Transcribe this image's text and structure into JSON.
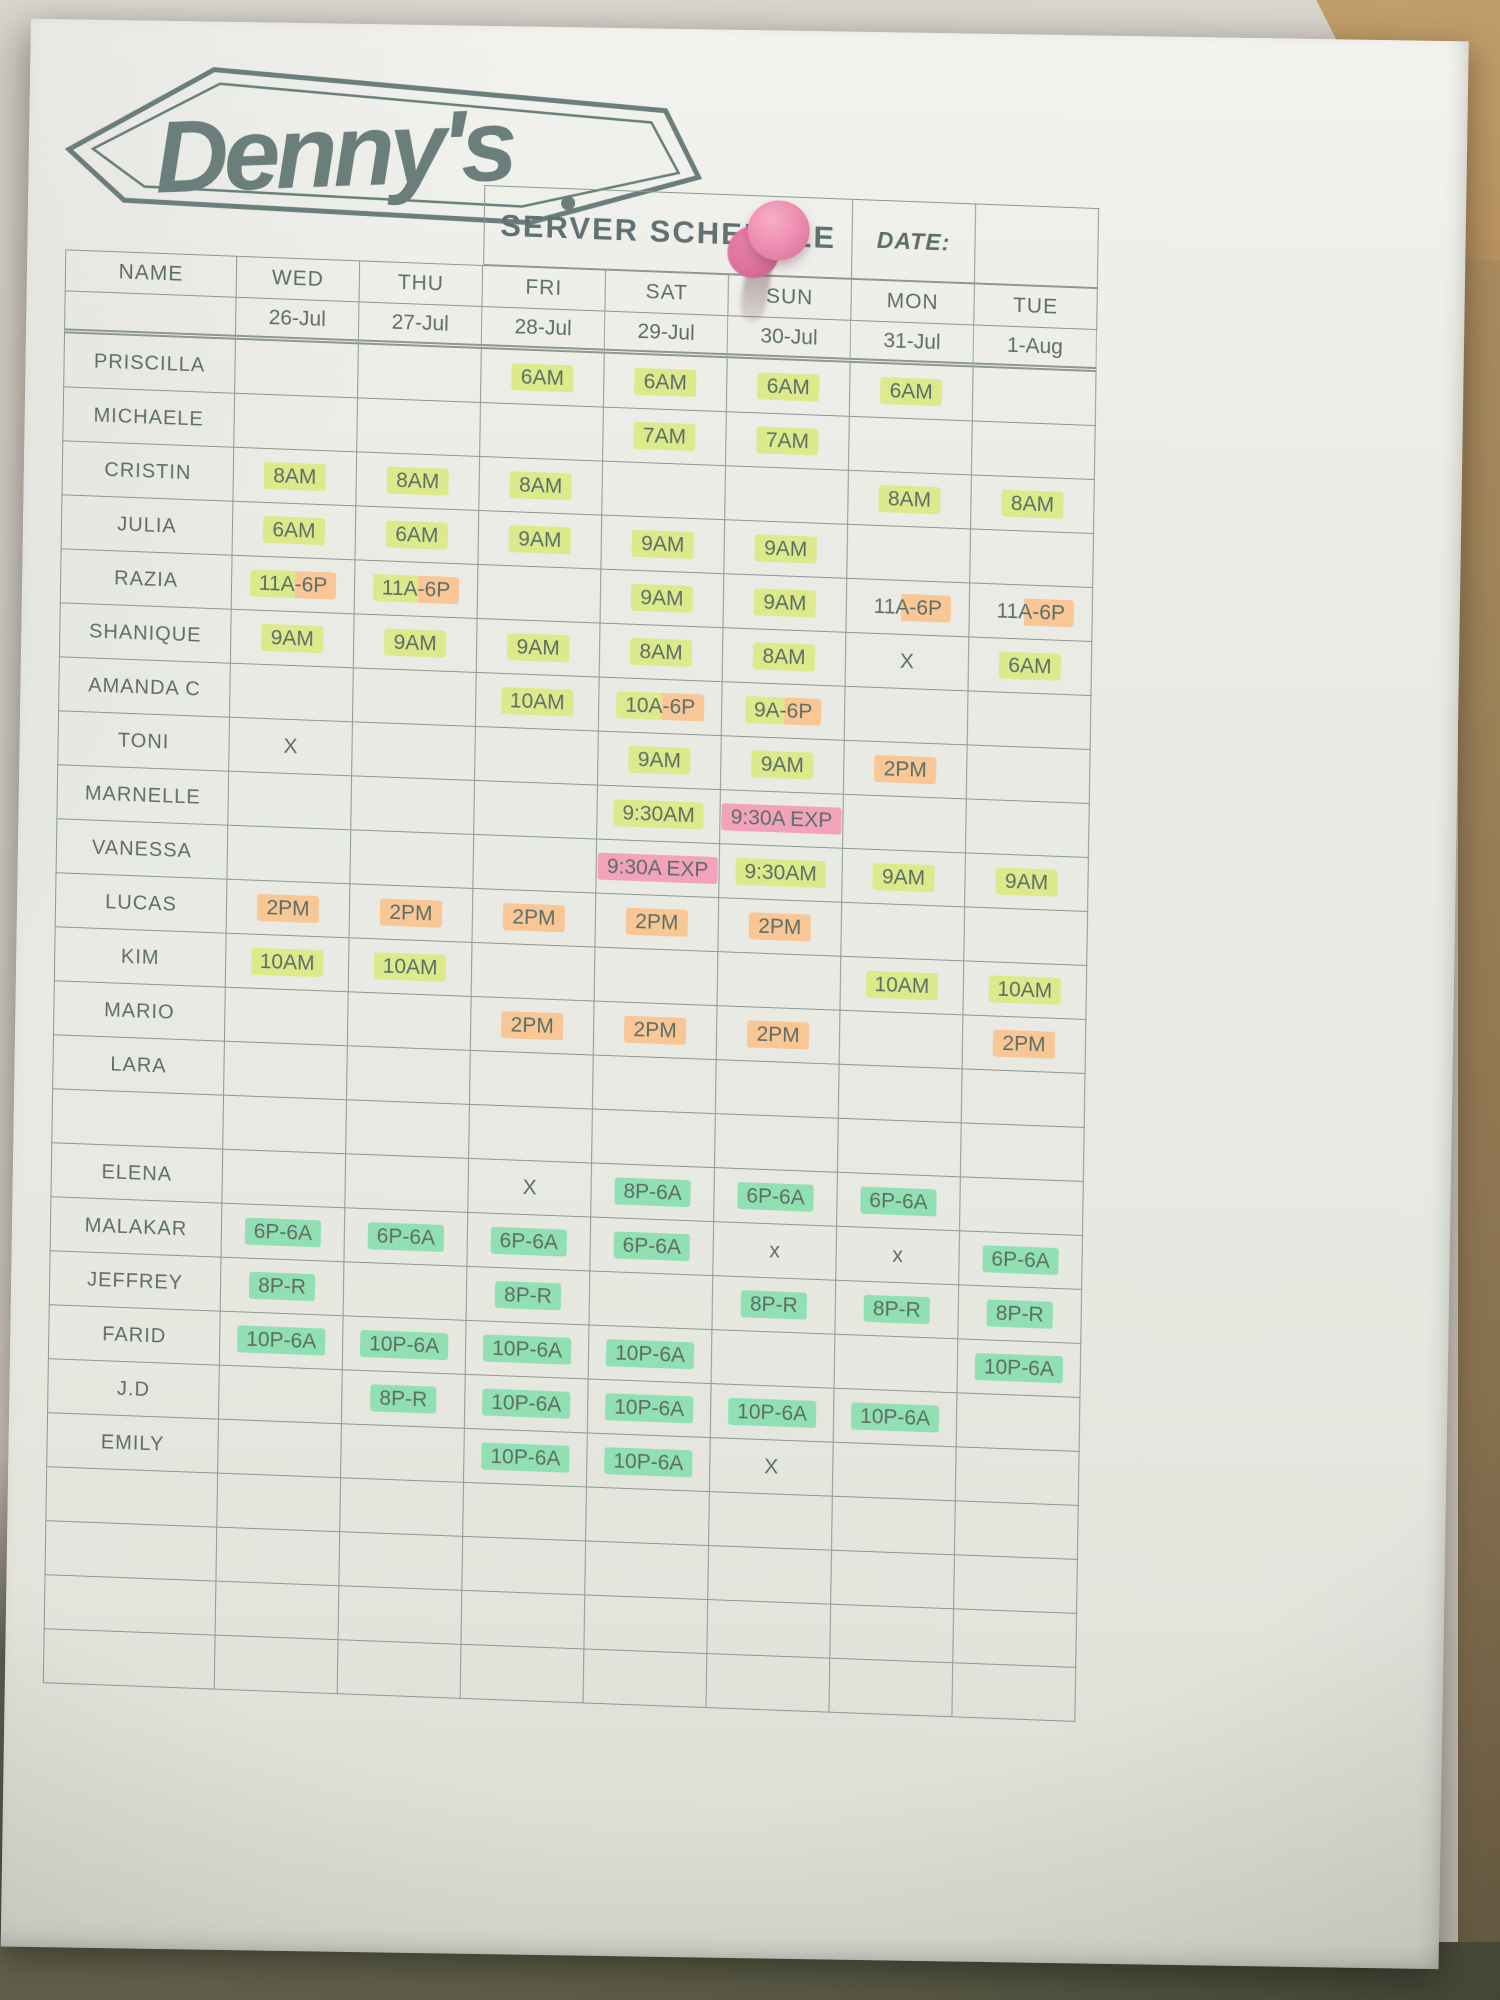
{
  "photo": {
    "subject": "Denny's paper server schedule pinned to a wall",
    "colors": {
      "ink": "#5d6e66",
      "grid_line": "#8d988f",
      "paper": "#eaebe5",
      "wall_tan": "#b08a58",
      "highlight_yellow": "#dcea8c",
      "highlight_orange": "#f8c795",
      "highlight_pink": "#f2a2bb",
      "highlight_green": "#90e0b3",
      "pushpin_pink": "#ee8fb2"
    }
  },
  "paper": {
    "logo_text": "Denny's",
    "title": "SERVER SCHEDULE",
    "date_label": "DATE:",
    "columns": [
      {
        "day": "NAME",
        "date": ""
      },
      {
        "day": "WED",
        "date": "26-Jul"
      },
      {
        "day": "THU",
        "date": "27-Jul"
      },
      {
        "day": "FRI",
        "date": "28-Jul"
      },
      {
        "day": "SAT",
        "date": "29-Jul"
      },
      {
        "day": "SUN",
        "date": "30-Jul"
      },
      {
        "day": "MON",
        "date": "31-Jul"
      },
      {
        "day": "TUE",
        "date": "1-Aug"
      }
    ],
    "highlight_legend": {
      "y": "yellow-green marker",
      "o": "orange marker",
      "p": "pink marker",
      "g": "green marker",
      "yo": "yellow then orange marker",
      "or": "orange marker on right half",
      "x": "no marker"
    },
    "rows": [
      {
        "name": "PRISCILLA",
        "cells": [
          null,
          null,
          {
            "t": "6AM",
            "h": "y"
          },
          {
            "t": "6AM",
            "h": "y"
          },
          {
            "t": "6AM",
            "h": "y"
          },
          {
            "t": "6AM",
            "h": "y"
          },
          null
        ]
      },
      {
        "name": "MICHAELE",
        "cells": [
          null,
          null,
          null,
          {
            "t": "7AM",
            "h": "y"
          },
          {
            "t": "7AM",
            "h": "y"
          },
          null,
          null
        ]
      },
      {
        "name": "CRISTIN",
        "cells": [
          {
            "t": "8AM",
            "h": "y"
          },
          {
            "t": "8AM",
            "h": "y"
          },
          {
            "t": "8AM",
            "h": "y"
          },
          null,
          null,
          {
            "t": "8AM",
            "h": "y"
          },
          {
            "t": "8AM",
            "h": "y"
          }
        ]
      },
      {
        "name": "JULIA",
        "cells": [
          {
            "t": "6AM",
            "h": "y"
          },
          {
            "t": "6AM",
            "h": "y"
          },
          {
            "t": "9AM",
            "h": "y"
          },
          {
            "t": "9AM",
            "h": "y"
          },
          {
            "t": "9AM",
            "h": "y"
          },
          null,
          null
        ]
      },
      {
        "name": "RAZIA",
        "cells": [
          {
            "t": "11A-6P",
            "h": "yo"
          },
          {
            "t": "11A-6P",
            "h": "yo"
          },
          null,
          {
            "t": "9AM",
            "h": "y"
          },
          {
            "t": "9AM",
            "h": "y"
          },
          {
            "t": "11A-6P",
            "h": "or"
          },
          {
            "t": "11A-6P",
            "h": "or"
          }
        ]
      },
      {
        "name": "SHANIQUE",
        "cells": [
          {
            "t": "9AM",
            "h": "y"
          },
          {
            "t": "9AM",
            "h": "y"
          },
          {
            "t": "9AM",
            "h": "y"
          },
          {
            "t": "8AM",
            "h": "y"
          },
          {
            "t": "8AM",
            "h": "y"
          },
          {
            "t": "X",
            "h": "x"
          },
          {
            "t": "6AM",
            "h": "y"
          }
        ]
      },
      {
        "name": "AMANDA C",
        "cells": [
          null,
          null,
          {
            "t": "10AM",
            "h": "y"
          },
          {
            "t": "10A-6P",
            "h": "yo"
          },
          {
            "t": "9A-6P",
            "h": "yo"
          },
          null,
          null
        ]
      },
      {
        "name": "TONI",
        "cells": [
          {
            "t": "X",
            "h": "x"
          },
          null,
          null,
          {
            "t": "9AM",
            "h": "y"
          },
          {
            "t": "9AM",
            "h": "y"
          },
          {
            "t": "2PM",
            "h": "o"
          },
          null
        ]
      },
      {
        "name": "MARNELLE",
        "cells": [
          null,
          null,
          null,
          {
            "t": "9:30AM",
            "h": "y"
          },
          {
            "t": "9:30A EXP",
            "h": "p"
          },
          null,
          null
        ]
      },
      {
        "name": "VANESSA",
        "cells": [
          null,
          null,
          null,
          {
            "t": "9:30A EXP",
            "h": "p"
          },
          {
            "t": "9:30AM",
            "h": "y"
          },
          {
            "t": "9AM",
            "h": "y"
          },
          {
            "t": "9AM",
            "h": "y"
          }
        ]
      },
      {
        "name": "LUCAS",
        "cells": [
          {
            "t": "2PM",
            "h": "o"
          },
          {
            "t": "2PM",
            "h": "o"
          },
          {
            "t": "2PM",
            "h": "o"
          },
          {
            "t": "2PM",
            "h": "o"
          },
          {
            "t": "2PM",
            "h": "o"
          },
          null,
          null
        ]
      },
      {
        "name": "KIM",
        "cells": [
          {
            "t": "10AM",
            "h": "y"
          },
          {
            "t": "10AM",
            "h": "y"
          },
          null,
          null,
          null,
          {
            "t": "10AM",
            "h": "y"
          },
          {
            "t": "10AM",
            "h": "y"
          }
        ]
      },
      {
        "name": "MARIO",
        "cells": [
          null,
          null,
          {
            "t": "2PM",
            "h": "o"
          },
          {
            "t": "2PM",
            "h": "o"
          },
          {
            "t": "2PM",
            "h": "o"
          },
          null,
          {
            "t": "2PM",
            "h": "o"
          }
        ]
      },
      {
        "name": "LARA",
        "cells": [
          null,
          null,
          null,
          null,
          null,
          null,
          null
        ]
      },
      {
        "name": "",
        "cells": [
          null,
          null,
          null,
          null,
          null,
          null,
          null
        ]
      },
      {
        "name": "ELENA",
        "cells": [
          null,
          null,
          {
            "t": "X",
            "h": "x"
          },
          {
            "t": "8P-6A",
            "h": "g"
          },
          {
            "t": "6P-6A",
            "h": "g"
          },
          {
            "t": "6P-6A",
            "h": "g"
          },
          null
        ]
      },
      {
        "name": "MALAKAR",
        "cells": [
          {
            "t": "6P-6A",
            "h": "g"
          },
          {
            "t": "6P-6A",
            "h": "g"
          },
          {
            "t": "6P-6A",
            "h": "g"
          },
          {
            "t": "6P-6A",
            "h": "g"
          },
          {
            "t": "x",
            "h": "x"
          },
          {
            "t": "x",
            "h": "x"
          },
          {
            "t": "6P-6A",
            "h": "g"
          }
        ]
      },
      {
        "name": "JEFFREY",
        "cells": [
          {
            "t": "8P-R",
            "h": "g"
          },
          null,
          {
            "t": "8P-R",
            "h": "g"
          },
          null,
          {
            "t": "8P-R",
            "h": "g"
          },
          {
            "t": "8P-R",
            "h": "g"
          },
          {
            "t": "8P-R",
            "h": "g"
          }
        ]
      },
      {
        "name": "FARID",
        "cells": [
          {
            "t": "10P-6A",
            "h": "g"
          },
          {
            "t": "10P-6A",
            "h": "g"
          },
          {
            "t": "10P-6A",
            "h": "g"
          },
          {
            "t": "10P-6A",
            "h": "g"
          },
          null,
          null,
          {
            "t": "10P-6A",
            "h": "g"
          }
        ]
      },
      {
        "name": "J.D",
        "cells": [
          null,
          {
            "t": "8P-R",
            "h": "g"
          },
          {
            "t": "10P-6A",
            "h": "g"
          },
          {
            "t": "10P-6A",
            "h": "g"
          },
          {
            "t": "10P-6A",
            "h": "g"
          },
          {
            "t": "10P-6A",
            "h": "g"
          },
          null
        ]
      },
      {
        "name": "EMILY",
        "cells": [
          null,
          null,
          {
            "t": "10P-6A",
            "h": "g"
          },
          {
            "t": "10P-6A",
            "h": "g"
          },
          {
            "t": "X",
            "h": "x"
          },
          null,
          null
        ]
      },
      {
        "name": "",
        "cells": [
          null,
          null,
          null,
          null,
          null,
          null,
          null
        ]
      },
      {
        "name": "",
        "cells": [
          null,
          null,
          null,
          null,
          null,
          null,
          null
        ]
      },
      {
        "name": "",
        "cells": [
          null,
          null,
          null,
          null,
          null,
          null,
          null
        ]
      },
      {
        "name": "",
        "cells": [
          null,
          null,
          null,
          null,
          null,
          null,
          null
        ]
      }
    ]
  }
}
